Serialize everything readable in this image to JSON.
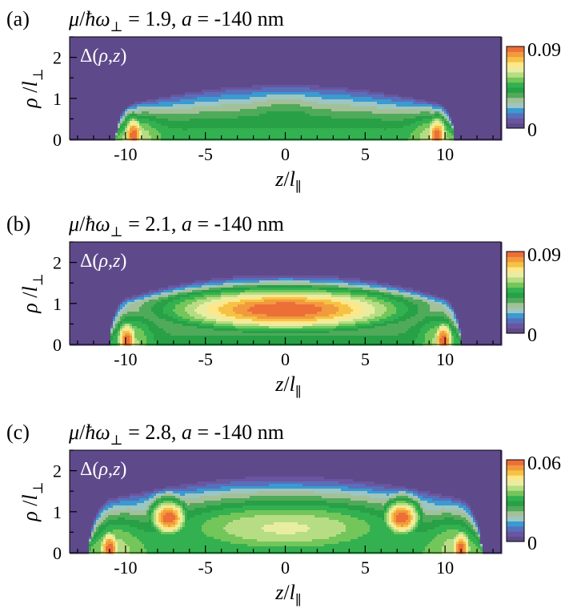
{
  "chart_data": [
    {
      "type": "heatmap",
      "panel_label": "(a)",
      "title": "μ/ħω⊥ = 1.9, a = -140 nm",
      "title_parts": {
        "mu": "μ",
        "slash": "/",
        "hbar_omega": "ħω",
        "perp": "⊥",
        "eq": " = 1.9, ",
        "a": "a",
        "rest": " = -140 nm"
      },
      "annotation": "Δ(ρ,z)",
      "xlabel": "z/l∥",
      "ylabel": "ρ/l⊥",
      "xlim": [
        -13.5,
        13.5
      ],
      "ylim": [
        0,
        2.5
      ],
      "x_ticks": [
        -10,
        -5,
        0,
        5,
        10
      ],
      "x_tick_labels": [
        "-10",
        "-5",
        "0",
        "5",
        "10"
      ],
      "y_ticks": [
        0,
        1,
        2
      ],
      "y_tick_labels": [
        "0",
        "1",
        "2"
      ],
      "colorbar": {
        "min": 0,
        "max": 0.09,
        "min_label": "0",
        "max_label": "0.09"
      },
      "model": {
        "z_edge": 10.6,
        "flat": 9.3,
        "rho_center": 1.5,
        "rho_edge": 1.0,
        "edge_peaks": [
          {
            "z": -9.5,
            "rho": 0.1,
            "amp": 0.09
          },
          {
            "z": 9.5,
            "rho": 0.1,
            "amp": 0.09
          }
        ],
        "central_peak": {
          "z": 0,
          "rho": 0.45,
          "amp": 0.044,
          "width_z": 4.0,
          "width_rho": 0.55
        },
        "base_amp": 0.047,
        "wall_amp": 0.062,
        "wall_z": 9.3
      }
    },
    {
      "type": "heatmap",
      "panel_label": "(b)",
      "title": "μ/ħω⊥ = 2.1, a = -140 nm",
      "title_parts": {
        "mu": "μ",
        "slash": "/",
        "hbar_omega": "ħω",
        "perp": "⊥",
        "eq": " = 2.1, ",
        "a": "a",
        "rest": " = -140 nm"
      },
      "annotation": "Δ(ρ,z)",
      "xlabel": "z/l∥",
      "ylabel": "ρ/l⊥",
      "xlim": [
        -13.5,
        13.5
      ],
      "ylim": [
        0,
        2.5
      ],
      "x_ticks": [
        -10,
        -5,
        0,
        5,
        10
      ],
      "x_tick_labels": [
        "-10",
        "-5",
        "0",
        "5",
        "10"
      ],
      "y_ticks": [
        0,
        1,
        2
      ],
      "y_tick_labels": [
        "0",
        "1",
        "2"
      ],
      "colorbar": {
        "min": 0,
        "max": 0.09,
        "min_label": "0",
        "max_label": "0.09"
      },
      "model": {
        "z_edge": 11.0,
        "flat": 9.6,
        "rho_center": 1.95,
        "rho_edge": 1.3,
        "edge_peaks": [
          {
            "z": -9.9,
            "rho": 0.1,
            "amp": 0.09
          },
          {
            "z": 9.9,
            "rho": 0.1,
            "amp": 0.09
          }
        ],
        "central_peak": {
          "z": 0,
          "rho": 0.85,
          "amp": 0.09,
          "width_z": 6.5,
          "width_rho": 0.45
        },
        "base_amp": 0.04,
        "wall_amp": 0.058,
        "wall_z": 9.6
      }
    },
    {
      "type": "heatmap",
      "panel_label": "(c)",
      "title": "μ/ħω⊥ = 2.8, a = -140 nm",
      "title_parts": {
        "mu": "μ",
        "slash": "/",
        "hbar_omega": "ħω",
        "perp": "⊥",
        "eq": " = 2.8, ",
        "a": "a",
        "rest": " = -140 nm"
      },
      "annotation": "Δ(ρ,z)",
      "xlabel": "z/l∥",
      "ylabel": "ρ/l⊥",
      "xlim": [
        -13.5,
        13.5
      ],
      "ylim": [
        0,
        2.5
      ],
      "x_ticks": [
        -10,
        -5,
        0,
        5,
        10
      ],
      "x_tick_labels": [
        "-10",
        "-5",
        "0",
        "5",
        "10"
      ],
      "y_ticks": [
        0,
        1,
        2
      ],
      "y_tick_labels": [
        "0",
        "1",
        "2"
      ],
      "colorbar": {
        "min": 0,
        "max": 0.06,
        "min_label": "0",
        "max_label": "0.06"
      },
      "model": {
        "z_edge": 12.3,
        "flat": 10.6,
        "rho_center": 2.1,
        "rho_edge": 1.5,
        "edge_peaks": [
          {
            "z": -11.0,
            "rho": 0.1,
            "amp": 0.06
          },
          {
            "z": 11.0,
            "rho": 0.1,
            "amp": 0.06
          }
        ],
        "side_peaks": [
          {
            "z": -7.3,
            "rho": 0.85,
            "amp": 0.06
          },
          {
            "z": 7.3,
            "rho": 0.85,
            "amp": 0.06
          }
        ],
        "central_peak": {
          "z": 0,
          "rho": 0.6,
          "amp": 0.042,
          "width_z": 8.0,
          "width_rho": 0.7
        },
        "base_amp": 0.033,
        "wall_amp": 0.04,
        "wall_z": 10.6
      }
    }
  ],
  "colormap": [
    "#5e4a8a",
    "#6a55a0",
    "#5870bb",
    "#3a9ad2",
    "#9cc6c2",
    "#a3c098",
    "#4faa5a",
    "#27a046",
    "#33b150",
    "#73c65a",
    "#b7dd84",
    "#e9eda2",
    "#fce78a",
    "#f7c244",
    "#f29a3e",
    "#ec6f37"
  ]
}
